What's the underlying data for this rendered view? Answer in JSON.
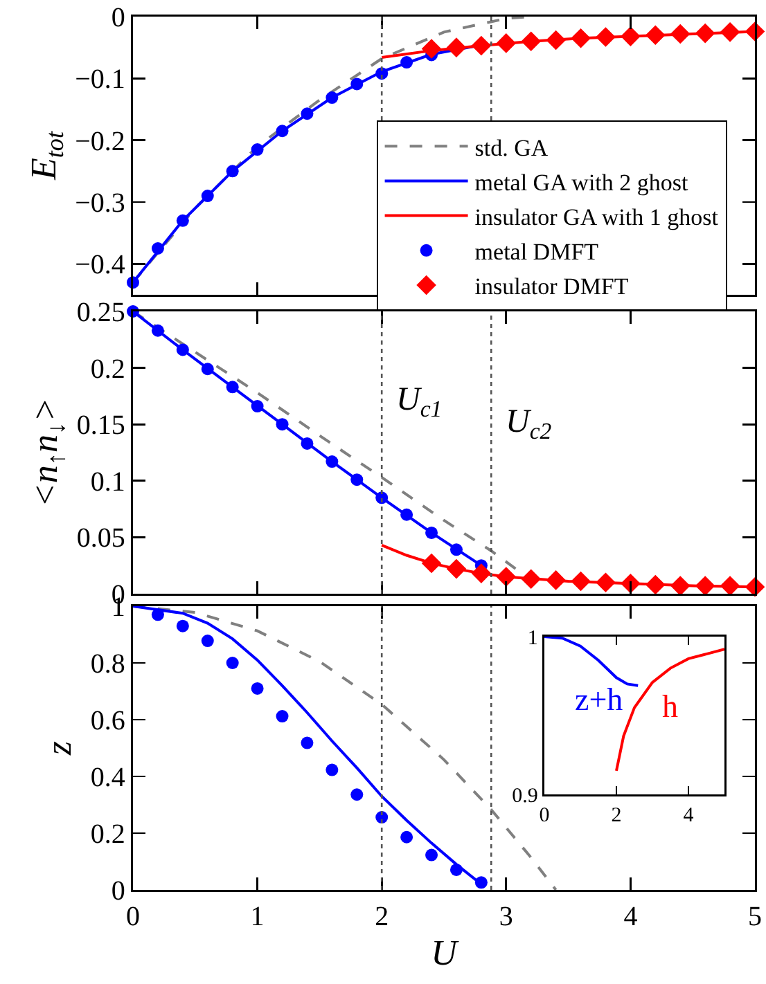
{
  "chart_data": [
    {
      "type": "line",
      "ylabel": "E$_{tot}$",
      "xlim": [
        0,
        5
      ],
      "xticks": [
        0,
        1,
        2,
        3,
        4,
        5
      ],
      "ylim": [
        -0.45,
        0
      ],
      "yticks": [
        0,
        -0.1,
        -0.2,
        -0.3,
        -0.4
      ],
      "tick_labels": "y",
      "legend": "bottom right",
      "ref_lines": [
        {
          "axis": "x",
          "value": 2.0,
          "color": "#555555",
          "line_style": "dotted"
        },
        {
          "axis": "x",
          "value": 2.88,
          "color": "#555555",
          "line_style": "dotted"
        }
      ],
      "series": [
        {
          "name": "std. GA",
          "color": "#808080",
          "line_style": "dashed",
          "marker": "none",
          "x": [
            0,
            0.5,
            1,
            1.5,
            2,
            2.5,
            3,
            3.2
          ],
          "values": [
            -0.43,
            -0.31,
            -0.21,
            -0.135,
            -0.068,
            -0.025,
            -0.003,
            0
          ]
        },
        {
          "name": "metal GA with 2 ghost",
          "color": "#0000ff",
          "line_style": "solid",
          "marker": "none",
          "x": [
            0,
            0.4,
            0.8,
            1.2,
            1.6,
            2.0,
            2.4,
            2.8
          ],
          "values": [
            -0.43,
            -0.33,
            -0.25,
            -0.185,
            -0.131,
            -0.089,
            -0.061,
            -0.046
          ]
        },
        {
          "name": "insulator GA with 1 ghost",
          "color": "#ff0000",
          "line_style": "solid",
          "marker": "none",
          "x": [
            2,
            2.4,
            2.8,
            3.2,
            3.6,
            4,
            4.5,
            5
          ],
          "values": [
            -0.066,
            -0.055,
            -0.047,
            -0.04,
            -0.035,
            -0.032,
            -0.028,
            -0.024
          ]
        },
        {
          "name": "metal DMFT",
          "type": "scatter",
          "color": "#0000ff",
          "marker": "circle",
          "x": [
            0,
            0.2,
            0.4,
            0.6,
            0.8,
            1.0,
            1.2,
            1.4,
            1.6,
            1.8,
            2.0,
            2.2,
            2.4
          ],
          "values": [
            -0.43,
            -0.375,
            -0.33,
            -0.29,
            -0.25,
            -0.215,
            -0.185,
            -0.157,
            -0.131,
            -0.109,
            -0.092,
            -0.074,
            -0.062
          ]
        },
        {
          "name": "insulator DMFT",
          "type": "scatter",
          "color": "#ff0000",
          "marker": "diamond",
          "x": [
            2.4,
            2.6,
            2.8,
            3.0,
            3.2,
            3.4,
            3.6,
            3.8,
            4.0,
            4.2,
            4.4,
            4.6,
            4.8,
            5.0
          ],
          "values": [
            -0.052,
            -0.05,
            -0.047,
            -0.043,
            -0.04,
            -0.038,
            -0.035,
            -0.033,
            -0.032,
            -0.03,
            -0.028,
            -0.027,
            -0.025,
            -0.024
          ]
        }
      ]
    },
    {
      "type": "line",
      "ylabel": "<n$_{↑}$n$_{↓}$>",
      "xlim": [
        0,
        5
      ],
      "xticks": [
        0,
        1,
        2,
        3,
        4,
        5
      ],
      "ylim": [
        0,
        0.25
      ],
      "yticks": [
        0,
        0.05,
        0.1,
        0.15,
        0.2,
        0.25
      ],
      "tick_labels": "y",
      "annotations": [
        "U$_{c1}$",
        "U$_{c2}$"
      ],
      "ref_lines": [
        {
          "axis": "x",
          "value": 2.0,
          "color": "#555555",
          "line_style": "dotted"
        },
        {
          "axis": "x",
          "value": 2.88,
          "color": "#555555",
          "line_style": "dotted"
        }
      ],
      "series": [
        {
          "color": "#808080",
          "line_style": "dashed",
          "marker": "none",
          "x": [
            0,
            0.5,
            1,
            1.5,
            2,
            2.5,
            2.88,
            3.2
          ],
          "values": [
            0.25,
            0.214,
            0.178,
            0.14,
            0.103,
            0.065,
            0.038,
            0.012
          ]
        },
        {
          "color": "#0000ff",
          "line_style": "solid",
          "marker": "none",
          "x": [
            0,
            0.4,
            0.8,
            1.2,
            1.6,
            2.0,
            2.4,
            2.8
          ],
          "values": [
            0.25,
            0.216,
            0.183,
            0.15,
            0.117,
            0.085,
            0.054,
            0.025
          ]
        },
        {
          "color": "#ff0000",
          "line_style": "solid",
          "marker": "none",
          "x": [
            2,
            2.2,
            2.4,
            2.6,
            2.8,
            3,
            3.5,
            4,
            4.5,
            5
          ],
          "values": [
            0.043,
            0.034,
            0.027,
            0.022,
            0.018,
            0.015,
            0.011,
            0.009,
            0.007,
            0.006
          ]
        },
        {
          "type": "scatter",
          "color": "#0000ff",
          "marker": "circle",
          "x": [
            0,
            0.2,
            0.4,
            0.6,
            0.8,
            1.0,
            1.2,
            1.4,
            1.6,
            1.8,
            2.0,
            2.2,
            2.4,
            2.6,
            2.8
          ],
          "values": [
            0.25,
            0.233,
            0.216,
            0.199,
            0.183,
            0.166,
            0.15,
            0.133,
            0.117,
            0.101,
            0.085,
            0.07,
            0.054,
            0.039,
            0.025
          ]
        },
        {
          "type": "scatter",
          "color": "#ff0000",
          "marker": "diamond",
          "x": [
            2.4,
            2.6,
            2.8,
            3.0,
            3.2,
            3.4,
            3.6,
            3.8,
            4.0,
            4.2,
            4.4,
            4.6,
            4.8,
            5.0
          ],
          "values": [
            0.027,
            0.022,
            0.018,
            0.015,
            0.013,
            0.012,
            0.011,
            0.01,
            0.009,
            0.008,
            0.007,
            0.007,
            0.007,
            0.006
          ]
        }
      ]
    },
    {
      "type": "line",
      "xlabel": "U",
      "ylabel": "z",
      "xlim": [
        0,
        5
      ],
      "xticks": [
        0,
        1,
        2,
        3,
        4,
        5
      ],
      "ylim": [
        0,
        1
      ],
      "yticks": [
        0,
        0.2,
        0.4,
        0.6,
        0.8,
        1
      ],
      "ref_lines": [
        {
          "axis": "x",
          "value": 2.0,
          "color": "#555555",
          "line_style": "dotted"
        },
        {
          "axis": "x",
          "value": 2.88,
          "color": "#555555",
          "line_style": "dotted"
        }
      ],
      "series": [
        {
          "color": "#808080",
          "line_style": "dashed",
          "marker": "none",
          "x": [
            0,
            0.5,
            1,
            1.5,
            2,
            2.5,
            2.88,
            3.2,
            3.4
          ],
          "values": [
            1,
            0.978,
            0.913,
            0.805,
            0.654,
            0.459,
            0.283,
            0.114,
            0
          ]
        },
        {
          "color": "#0000ff",
          "line_style": "solid",
          "marker": "none",
          "x": [
            0,
            0.4,
            0.6,
            0.8,
            1.0,
            1.2,
            1.4,
            1.6,
            1.8,
            2.0,
            2.2,
            2.4,
            2.6,
            2.8
          ],
          "values": [
            1,
            0.975,
            0.94,
            0.885,
            0.81,
            0.72,
            0.625,
            0.525,
            0.43,
            0.33,
            0.245,
            0.165,
            0.09,
            0.02
          ]
        },
        {
          "type": "scatter",
          "color": "#0000ff",
          "marker": "circle",
          "x": [
            0.2,
            0.4,
            0.6,
            0.8,
            1.0,
            1.2,
            1.4,
            1.6,
            1.8,
            2.0,
            2.2,
            2.4,
            2.6,
            2.8
          ],
          "values": [
            0.97,
            0.93,
            0.878,
            0.8,
            0.71,
            0.612,
            0.518,
            0.423,
            0.336,
            0.256,
            0.186,
            0.123,
            0.071,
            0.026
          ]
        }
      ]
    },
    {
      "type": "line",
      "xlim": [
        0,
        5
      ],
      "xticks": [
        0,
        2,
        4
      ],
      "ylim": [
        0.9,
        1
      ],
      "yticks": [
        0.9,
        1
      ],
      "series": [
        {
          "name": "z+h",
          "color": "#0000ff",
          "line_style": "solid",
          "marker": "none",
          "x": [
            0,
            0.5,
            1,
            1.5,
            2,
            2.3,
            2.6
          ],
          "values": [
            1,
            0.999,
            0.994,
            0.985,
            0.974,
            0.97,
            0.969
          ]
        },
        {
          "name": "h",
          "color": "#ff0000",
          "line_style": "solid",
          "marker": "none",
          "x": [
            2,
            2.2,
            2.5,
            3,
            3.5,
            4,
            4.5,
            5
          ],
          "values": [
            0.915,
            0.937,
            0.955,
            0.971,
            0.98,
            0.986,
            0.989,
            0.992
          ]
        }
      ]
    }
  ]
}
